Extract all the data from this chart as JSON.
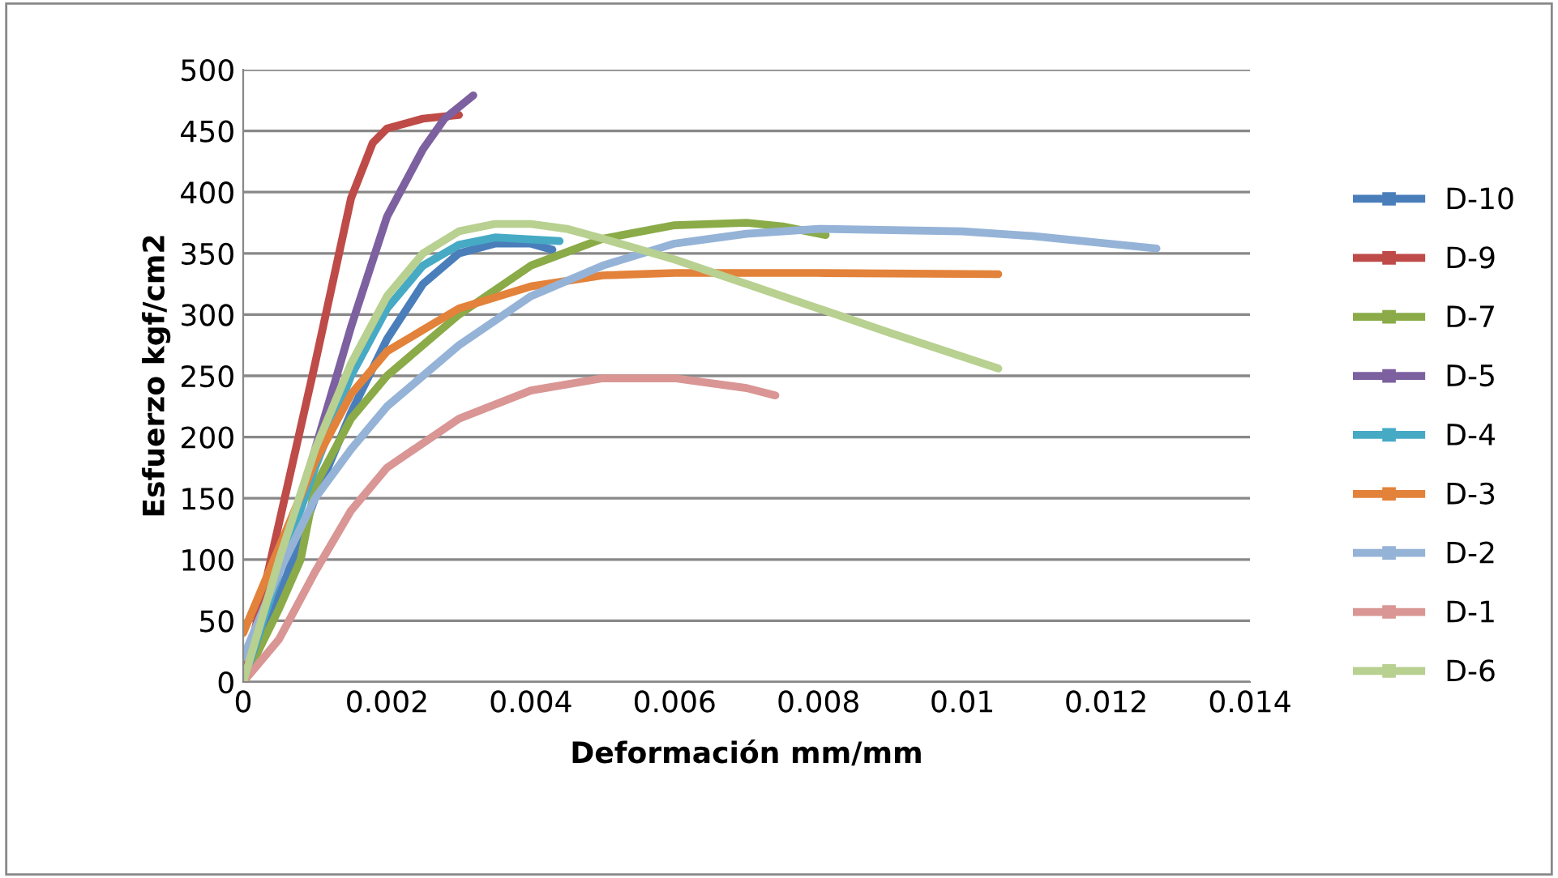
{
  "chart_data": {
    "type": "line",
    "xlabel": "Deformación mm/mm",
    "ylabel": "Esfuerzo kgf/cm2",
    "xlim": [
      0,
      0.014
    ],
    "xticks": [
      0,
      {
        "value": 0.002,
        "label": "0.002"
      },
      {
        "value": 0.004,
        "label": "0.004"
      },
      {
        "value": 0.006,
        "label": "0.006"
      },
      {
        "value": 0.008,
        "label": "0.008"
      },
      {
        "value": 0.01,
        "label": "0.01"
      },
      {
        "value": 0.012,
        "label": "0.012"
      },
      {
        "value": 0.014,
        "label": "0.014"
      }
    ],
    "ylim": [
      0,
      500
    ],
    "yticks": [
      0,
      50,
      100,
      150,
      200,
      250,
      300,
      350,
      400,
      450,
      500
    ],
    "grid": "y",
    "legend": "right",
    "marker": "none",
    "line_style": "solid",
    "series": [
      {
        "name": "D-10",
        "color": "#4a7ebb",
        "x": [
          0,
          0.0005,
          0.001,
          0.0015,
          0.002,
          0.0025,
          0.003,
          0.0035,
          0.004,
          0.0043
        ],
        "values": [
          0,
          70,
          150,
          220,
          280,
          325,
          350,
          358,
          358,
          353
        ]
      },
      {
        "name": "D-9",
        "color": "#be4b48",
        "x": [
          0,
          0.0005,
          0.001,
          0.0015,
          0.0018,
          0.002,
          0.0025,
          0.003
        ],
        "values": [
          0,
          130,
          260,
          395,
          440,
          452,
          460,
          463
        ]
      },
      {
        "name": "D-7",
        "color": "#8aab48",
        "x": [
          0,
          0.0005,
          0.0008,
          0.001,
          0.0015,
          0.002,
          0.003,
          0.004,
          0.005,
          0.006,
          0.007,
          0.0075,
          0.0081
        ],
        "values": [
          0,
          60,
          100,
          160,
          215,
          250,
          300,
          340,
          362,
          373,
          375,
          372,
          365
        ]
      },
      {
        "name": "D-5",
        "color": "#7d60a0",
        "x": [
          0,
          0.0005,
          0.001,
          0.0015,
          0.002,
          0.0025,
          0.0028,
          0.0032
        ],
        "values": [
          0,
          90,
          190,
          290,
          380,
          435,
          460,
          479
        ]
      },
      {
        "name": "D-4",
        "color": "#46aac5",
        "x": [
          0,
          0.0005,
          0.001,
          0.0015,
          0.002,
          0.0025,
          0.003,
          0.0035,
          0.0044
        ],
        "values": [
          0,
          90,
          175,
          250,
          305,
          340,
          357,
          363,
          360
        ]
      },
      {
        "name": "D-3",
        "color": "#e3823a",
        "x": [
          0,
          0.0005,
          0.001,
          0.0015,
          0.002,
          0.003,
          0.004,
          0.005,
          0.006,
          0.008,
          0.0105
        ],
        "values": [
          40,
          110,
          180,
          235,
          270,
          305,
          323,
          332,
          334,
          334,
          333
        ]
      },
      {
        "name": "D-2",
        "color": "#95b3d7",
        "x": [
          0,
          0.0005,
          0.001,
          0.0015,
          0.002,
          0.003,
          0.004,
          0.005,
          0.006,
          0.007,
          0.008,
          0.01,
          0.011,
          0.0127
        ],
        "values": [
          20,
          90,
          150,
          190,
          225,
          275,
          315,
          340,
          358,
          366,
          370,
          368,
          364,
          354
        ]
      },
      {
        "name": "D-1",
        "color": "#d99694",
        "x": [
          0,
          0.0005,
          0.001,
          0.0015,
          0.002,
          0.003,
          0.004,
          0.005,
          0.006,
          0.007,
          0.0074
        ],
        "values": [
          0,
          35,
          90,
          140,
          175,
          215,
          238,
          248,
          248,
          240,
          234
        ]
      },
      {
        "name": "D-6",
        "color": "#b8d090",
        "x": [
          0,
          0.0005,
          0.001,
          0.0015,
          0.002,
          0.0025,
          0.003,
          0.0035,
          0.004,
          0.0045,
          0.005,
          0.006,
          0.007,
          0.008,
          0.009,
          0.0105
        ],
        "values": [
          0,
          100,
          190,
          260,
          315,
          350,
          368,
          374,
          374,
          370,
          362,
          345,
          325,
          305,
          285,
          256
        ]
      }
    ]
  }
}
